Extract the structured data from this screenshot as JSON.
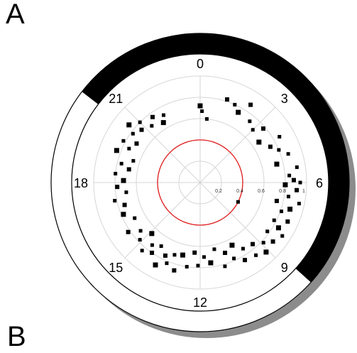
{
  "panel_label": "A",
  "next_panel_label": "B",
  "colors": {
    "dark_band": "#000000",
    "shadow": "#8c8c8c",
    "grid": "#d6d6d6",
    "reference_circle": "#e01b1b",
    "points": "#000000"
  },
  "chart_data": {
    "type": "scatter",
    "coordinate_system": "polar",
    "angular_axis": {
      "unit_hours": 24,
      "zero_at": "top",
      "direction": "clockwise",
      "tick_labels": [
        {
          "hour": 0,
          "text": "0"
        },
        {
          "hour": 3,
          "text": "3"
        },
        {
          "hour": 6,
          "text": "6"
        },
        {
          "hour": 9,
          "text": "9"
        },
        {
          "hour": 12,
          "text": "12"
        },
        {
          "hour": 15,
          "text": "15"
        },
        {
          "hour": 18,
          "text": "18"
        },
        {
          "hour": 21,
          "text": "21"
        }
      ]
    },
    "radial_axis": {
      "range": [
        0,
        1
      ],
      "ticks": [
        0.2,
        0.4,
        0.6,
        0.8,
        1
      ],
      "tick_labels": [
        "0.2",
        "0.4",
        "0.6",
        "0.8",
        "1"
      ]
    },
    "reference_circle_r": 0.4,
    "dark_period": {
      "start_hour": 20.5,
      "end_hour": 8.8
    },
    "grid": true,
    "points": [
      {
        "hour": 0.0,
        "r": 0.72
      },
      {
        "hour": 0.1,
        "r": 0.67
      },
      {
        "hour": 0.4,
        "r": 0.6
      },
      {
        "hour": 1.2,
        "r": 0.82
      },
      {
        "hour": 1.6,
        "r": 0.8
      },
      {
        "hour": 1.9,
        "r": 0.75
      },
      {
        "hour": 2.2,
        "r": 0.87
      },
      {
        "hour": 2.6,
        "r": 0.74
      },
      {
        "hour": 3.0,
        "r": 0.7
      },
      {
        "hour": 3.3,
        "r": 0.78
      },
      {
        "hour": 3.7,
        "r": 0.67
      },
      {
        "hour": 4.0,
        "r": 0.86
      },
      {
        "hour": 4.2,
        "r": 0.74
      },
      {
        "hour": 4.5,
        "r": 0.8
      },
      {
        "hour": 4.8,
        "r": 0.87
      },
      {
        "hour": 5.1,
        "r": 0.74
      },
      {
        "hour": 5.4,
        "r": 0.92
      },
      {
        "hour": 5.7,
        "r": 0.84
      },
      {
        "hour": 5.9,
        "r": 0.88
      },
      {
        "hour": 6.0,
        "r": 0.94
      },
      {
        "hour": 6.1,
        "r": 0.8
      },
      {
        "hour": 6.3,
        "r": 0.91
      },
      {
        "hour": 6.6,
        "r": 0.84
      },
      {
        "hour": 6.8,
        "r": 0.95
      },
      {
        "hour": 6.9,
        "r": 0.74
      },
      {
        "hour": 7.1,
        "r": 0.88
      },
      {
        "hour": 7.3,
        "r": 0.81
      },
      {
        "hour": 7.6,
        "r": 0.9
      },
      {
        "hour": 7.8,
        "r": 0.78
      },
      {
        "hour": 7.8,
        "r": 0.4
      },
      {
        "hour": 8.0,
        "r": 0.85
      },
      {
        "hour": 8.2,
        "r": 0.92
      },
      {
        "hour": 8.4,
        "r": 0.78
      },
      {
        "hour": 8.6,
        "r": 0.88
      },
      {
        "hour": 8.9,
        "r": 0.82
      },
      {
        "hour": 9.1,
        "r": 0.9
      },
      {
        "hour": 9.3,
        "r": 0.76
      },
      {
        "hour": 9.5,
        "r": 0.86
      },
      {
        "hour": 9.8,
        "r": 0.74
      },
      {
        "hour": 10.0,
        "r": 0.84
      },
      {
        "hour": 10.2,
        "r": 0.66
      },
      {
        "hour": 10.4,
        "r": 0.78
      },
      {
        "hour": 10.7,
        "r": 0.7
      },
      {
        "hour": 10.9,
        "r": 0.82
      },
      {
        "hour": 11.2,
        "r": 0.64
      },
      {
        "hour": 11.5,
        "r": 0.76
      },
      {
        "hour": 11.8,
        "r": 0.7
      },
      {
        "hour": 12.1,
        "r": 0.78
      },
      {
        "hour": 12.3,
        "r": 0.66
      },
      {
        "hour": 12.6,
        "r": 0.8
      },
      {
        "hour": 12.9,
        "r": 0.7
      },
      {
        "hour": 13.1,
        "r": 0.86
      },
      {
        "hour": 13.3,
        "r": 0.72
      },
      {
        "hour": 13.5,
        "r": 0.82
      },
      {
        "hour": 13.7,
        "r": 0.76
      },
      {
        "hour": 13.9,
        "r": 0.88
      },
      {
        "hour": 14.1,
        "r": 0.7
      },
      {
        "hour": 14.3,
        "r": 0.8
      },
      {
        "hour": 14.5,
        "r": 0.74
      },
      {
        "hour": 14.7,
        "r": 0.84
      },
      {
        "hour": 14.9,
        "r": 0.66
      },
      {
        "hour": 15.1,
        "r": 0.78
      },
      {
        "hour": 15.4,
        "r": 0.72
      },
      {
        "hour": 15.7,
        "r": 0.82
      },
      {
        "hour": 16.1,
        "r": 0.7
      },
      {
        "hour": 16.5,
        "r": 0.78
      },
      {
        "hour": 16.9,
        "r": 0.74
      },
      {
        "hour": 17.2,
        "r": 0.82
      },
      {
        "hour": 17.5,
        "r": 0.7
      },
      {
        "hour": 17.8,
        "r": 0.78
      },
      {
        "hour": 18.1,
        "r": 0.72
      },
      {
        "hour": 18.4,
        "r": 0.8
      },
      {
        "hour": 18.7,
        "r": 0.68
      },
      {
        "hour": 18.9,
        "r": 0.76
      },
      {
        "hour": 19.2,
        "r": 0.66
      },
      {
        "hour": 19.4,
        "r": 0.84
      },
      {
        "hour": 19.7,
        "r": 0.74
      },
      {
        "hour": 19.9,
        "r": 0.82
      },
      {
        "hour": 20.1,
        "r": 0.7
      },
      {
        "hour": 20.4,
        "r": 0.78
      },
      {
        "hour": 20.6,
        "r": 0.86
      },
      {
        "hour": 20.8,
        "r": 0.74
      },
      {
        "hour": 21.0,
        "r": 0.8
      },
      {
        "hour": 21.3,
        "r": 0.7
      },
      {
        "hour": 21.6,
        "r": 0.76
      },
      {
        "hour": 21.9,
        "r": 0.66
      },
      {
        "hour": 22.1,
        "r": 0.72
      }
    ]
  }
}
